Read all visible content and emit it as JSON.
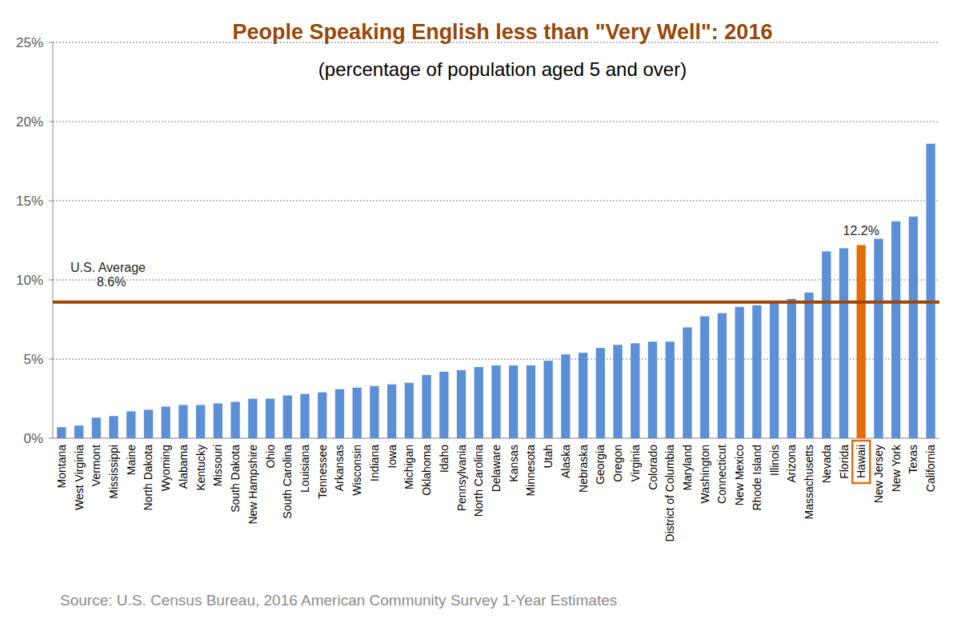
{
  "chart_data": {
    "type": "bar",
    "title": "People Speaking English less than \"Very Well\": 2016",
    "subtitle": "(percentage of population aged 5 and over)",
    "source": "Source: U.S. Census Bureau, 2016 American Community Survey 1-Year Estimates",
    "categories": [
      "Montana",
      "West Virginia",
      "Vermont",
      "Mississippi",
      "Maine",
      "North Dakota",
      "Wyoming",
      "Alabama",
      "Kentucky",
      "Missouri",
      "South Dakota",
      "New Hampshire",
      "Ohio",
      "South Carolina",
      "Louisiana",
      "Tennessee",
      "Arkansas",
      "Wisconsin",
      "Indiana",
      "Iowa",
      "Michigan",
      "Oklahoma",
      "Idaho",
      "Pennsylvania",
      "North Carolina",
      "Delaware",
      "Kansas",
      "Minnesota",
      "Utah",
      "Alaska",
      "Nebraska",
      "Georgia",
      "Oregon",
      "Virginia",
      "Colorado",
      "District of Columbia",
      "Maryland",
      "Washington",
      "Connecticut",
      "New Mexico",
      "Rhode Island",
      "Illinois",
      "Arizona",
      "Massachusetts",
      "Nevada",
      "Florida",
      "Hawaii",
      "New Jersey",
      "New York",
      "Texas",
      "California"
    ],
    "values": [
      0.7,
      0.8,
      1.3,
      1.4,
      1.7,
      1.8,
      2.0,
      2.1,
      2.1,
      2.2,
      2.3,
      2.5,
      2.5,
      2.7,
      2.8,
      2.9,
      3.1,
      3.2,
      3.3,
      3.4,
      3.5,
      4.0,
      4.2,
      4.3,
      4.5,
      4.6,
      4.6,
      4.6,
      4.9,
      5.3,
      5.4,
      5.7,
      5.9,
      6.0,
      6.1,
      6.1,
      7.0,
      7.7,
      7.9,
      8.3,
      8.4,
      8.6,
      8.8,
      9.2,
      11.8,
      12.0,
      12.2,
      12.6,
      13.7,
      14.0,
      18.6
    ],
    "value_labels": [
      null,
      null,
      null,
      null,
      null,
      null,
      null,
      null,
      null,
      null,
      null,
      null,
      null,
      null,
      null,
      null,
      null,
      null,
      null,
      null,
      null,
      null,
      null,
      null,
      null,
      null,
      null,
      null,
      null,
      null,
      null,
      null,
      null,
      null,
      null,
      null,
      null,
      null,
      null,
      null,
      null,
      null,
      null,
      null,
      null,
      null,
      "12.2%",
      null,
      null,
      null,
      null
    ],
    "color": "#5b8fd6",
    "colors": [
      "#5b8fd6",
      "#5b8fd6",
      "#5b8fd6",
      "#5b8fd6",
      "#5b8fd6",
      "#5b8fd6",
      "#5b8fd6",
      "#5b8fd6",
      "#5b8fd6",
      "#5b8fd6",
      "#5b8fd6",
      "#5b8fd6",
      "#5b8fd6",
      "#5b8fd6",
      "#5b8fd6",
      "#5b8fd6",
      "#5b8fd6",
      "#5b8fd6",
      "#5b8fd6",
      "#5b8fd6",
      "#5b8fd6",
      "#5b8fd6",
      "#5b8fd6",
      "#5b8fd6",
      "#5b8fd6",
      "#5b8fd6",
      "#5b8fd6",
      "#5b8fd6",
      "#5b8fd6",
      "#5b8fd6",
      "#5b8fd6",
      "#5b8fd6",
      "#5b8fd6",
      "#5b8fd6",
      "#5b8fd6",
      "#5b8fd6",
      "#5b8fd6",
      "#5b8fd6",
      "#5b8fd6",
      "#5b8fd6",
      "#5b8fd6",
      "#5b8fd6",
      "#5b8fd6",
      "#5b8fd6",
      "#5b8fd6",
      "#5b8fd6",
      "#e46c0a",
      "#5b8fd6",
      "#5b8fd6",
      "#5b8fd6",
      "#5b8fd6"
    ],
    "reference_line": {
      "label": "U.S. Average",
      "value": 8.6,
      "value_label": "8.6%",
      "color": "#a0480a"
    },
    "ylim": [
      0,
      25
    ],
    "yticks": [
      {
        "value": 0,
        "label": "0%"
      },
      {
        "value": 5,
        "label": "5%"
      },
      {
        "value": 10,
        "label": "10%"
      },
      {
        "value": 15,
        "label": "15%"
      },
      {
        "value": 20,
        "label": "20%"
      },
      {
        "value": 25,
        "label": "25%"
      }
    ],
    "grid": true
  }
}
